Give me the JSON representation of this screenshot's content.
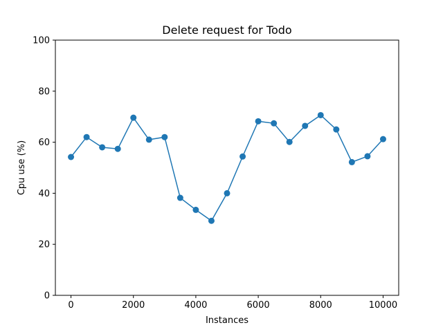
{
  "chart_data": {
    "type": "line",
    "title": "Delete request for Todo",
    "xlabel": "Instances",
    "ylabel": "Cpu use (%)",
    "xlim": [
      -500,
      10500
    ],
    "ylim": [
      0,
      100
    ],
    "xticks": [
      0,
      2000,
      4000,
      6000,
      8000,
      10000
    ],
    "yticks": [
      0,
      20,
      40,
      60,
      80,
      100
    ],
    "grid": false,
    "marker": "circle",
    "color": "#1f77b4",
    "series": [
      {
        "x": [
          0,
          500,
          1000,
          1500,
          2000,
          2500,
          3000,
          3500,
          4000,
          4500,
          5000,
          5500,
          6000,
          6500,
          7000,
          7500,
          8000,
          8500,
          9000,
          9500,
          10000
        ],
        "values": [
          54.2,
          62.0,
          58.0,
          57.4,
          69.6,
          61.0,
          62.0,
          38.2,
          33.5,
          29.2,
          40.0,
          54.4,
          68.2,
          67.4,
          60.1,
          66.4,
          70.6,
          65.0,
          52.2,
          54.5,
          61.2
        ]
      }
    ]
  }
}
